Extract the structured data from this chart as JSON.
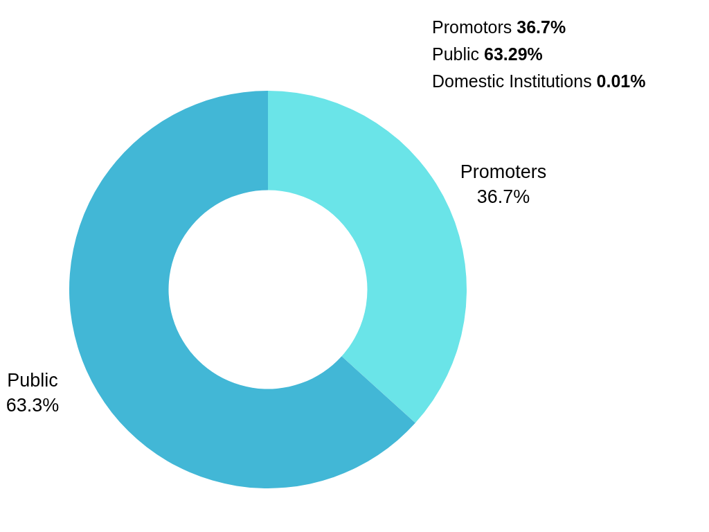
{
  "chart_data": {
    "type": "donut",
    "categories": [
      "Promoters",
      "Public"
    ],
    "values": [
      36.7,
      63.3
    ],
    "colors": [
      "#6ae4e8",
      "#42b7d6"
    ],
    "value_labels": [
      "36.7%",
      "63.3%"
    ],
    "annotations": [
      "Promotors 36.7%",
      "Public 63.29%",
      "Domestic Institutions 0.01%"
    ],
    "legend": false
  }
}
